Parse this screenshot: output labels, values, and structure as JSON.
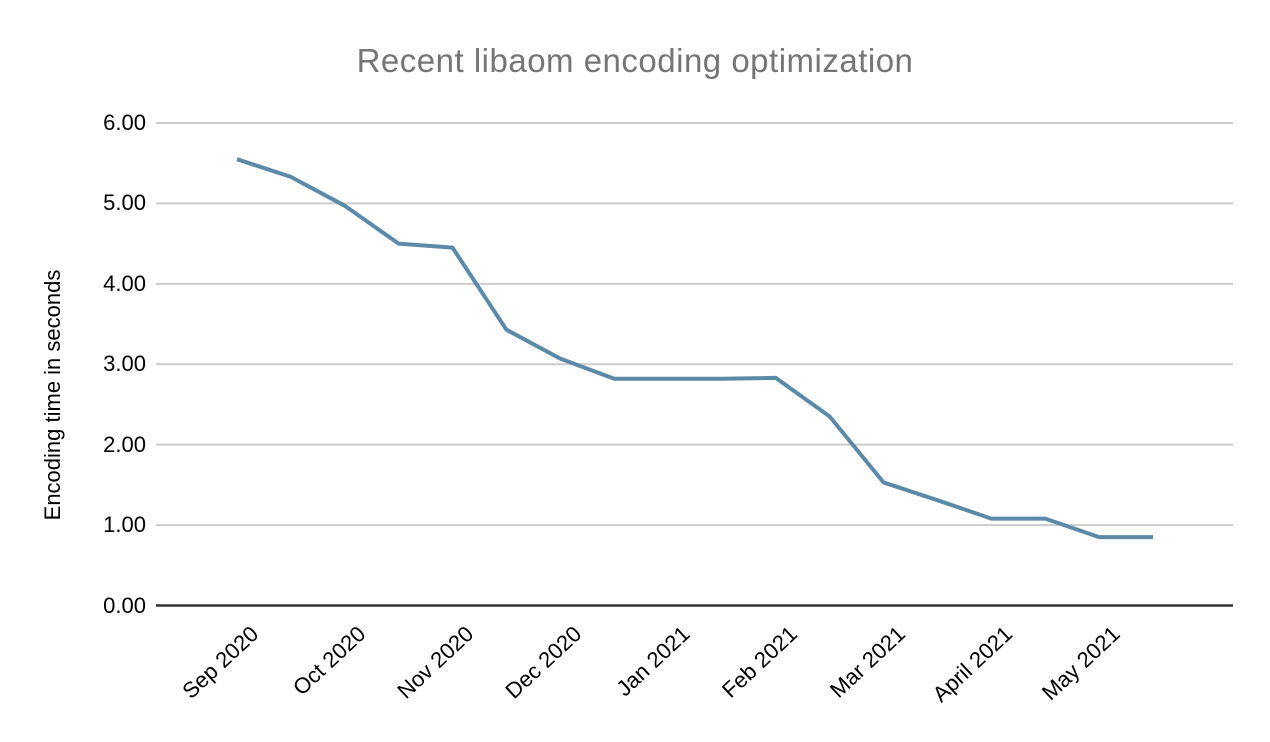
{
  "chart_data": {
    "type": "line",
    "title": "Recent libaom encoding optimization",
    "ylabel": "Encoding time in seconds",
    "xlabel": "",
    "x_categories": [
      "Sep 2020",
      "Oct 2020",
      "Nov 2020",
      "Dec 2020",
      "Jan 2021",
      "Feb 2021",
      "Mar 2021",
      "April 2021",
      "May 2021"
    ],
    "points_per_category": 2,
    "values": [
      5.55,
      5.33,
      4.97,
      4.5,
      4.45,
      3.43,
      3.07,
      2.82,
      2.82,
      2.82,
      2.83,
      2.35,
      1.53,
      1.31,
      1.08,
      1.08,
      0.85,
      0.85
    ],
    "y_ticks": [
      0,
      1,
      2,
      3,
      4,
      5,
      6
    ],
    "y_tick_labels": [
      "0.00",
      "1.00",
      "2.00",
      "3.00",
      "4.00",
      "5.00",
      "6.00"
    ],
    "ylim": [
      0,
      6
    ],
    "grid": true,
    "legend": "none",
    "colors": {
      "line": "#5b8aa9",
      "title_text": "#757575",
      "axis_text": "#000000",
      "gridline": "#cccccc",
      "axis_line": "#333333",
      "background": "#ffffff"
    }
  }
}
